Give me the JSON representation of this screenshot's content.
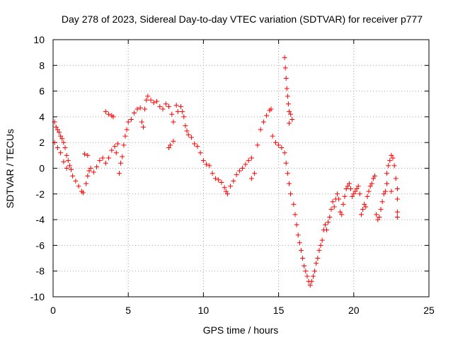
{
  "chart_data": {
    "type": "scatter",
    "title": "Day 278 of 2023, Sidereal Day-to-day VTEC variation (SDTVAR) for receiver p777",
    "xlabel": "GPS time / hours",
    "ylabel": "SDTVAR / TECUs",
    "xlim": [
      0,
      25
    ],
    "ylim": [
      -10,
      10
    ],
    "xticks": [
      0,
      5,
      10,
      15,
      20,
      25
    ],
    "yticks": [
      -10,
      -8,
      -6,
      -4,
      -2,
      0,
      2,
      4,
      6,
      8,
      10
    ],
    "grid": true,
    "marker": "+",
    "color": "#ff0000",
    "series": [
      {
        "name": "SDTVAR",
        "points": [
          [
            0.1,
            3.6
          ],
          [
            0.2,
            3.2
          ],
          [
            0.3,
            3.0
          ],
          [
            0.4,
            2.8
          ],
          [
            0.5,
            2.5
          ],
          [
            0.6,
            2.3
          ],
          [
            0.7,
            2.0
          ],
          [
            0.8,
            1.6
          ],
          [
            0.9,
            1.0
          ],
          [
            1.0,
            0.6
          ],
          [
            0.1,
            2.0
          ],
          [
            0.3,
            1.6
          ],
          [
            0.5,
            1.2
          ],
          [
            0.7,
            0.5
          ],
          [
            0.9,
            0.0
          ],
          [
            1.1,
            0.2
          ],
          [
            1.2,
            -0.1
          ],
          [
            1.3,
            -0.6
          ],
          [
            1.5,
            -1.0
          ],
          [
            1.7,
            -1.4
          ],
          [
            1.9,
            -1.8
          ],
          [
            2.0,
            -1.9
          ],
          [
            2.2,
            -1.2
          ],
          [
            2.3,
            -0.6
          ],
          [
            2.4,
            -0.2
          ],
          [
            2.1,
            1.1
          ],
          [
            2.3,
            1.0
          ],
          [
            2.5,
            0.0
          ],
          [
            2.7,
            -0.3
          ],
          [
            2.9,
            0.1
          ],
          [
            3.1,
            0.6
          ],
          [
            3.3,
            0.8
          ],
          [
            3.5,
            0.4
          ],
          [
            3.7,
            0.8
          ],
          [
            3.9,
            1.4
          ],
          [
            3.5,
            4.4
          ],
          [
            3.7,
            4.2
          ],
          [
            3.9,
            4.1
          ],
          [
            4.0,
            4.0
          ],
          [
            4.1,
            1.7
          ],
          [
            4.2,
            1.2
          ],
          [
            4.3,
            1.9
          ],
          [
            4.4,
            -0.4
          ],
          [
            4.5,
            0.4
          ],
          [
            4.6,
            0.9
          ],
          [
            4.7,
            1.8
          ],
          [
            4.8,
            2.5
          ],
          [
            4.9,
            3.0
          ],
          [
            5.0,
            3.6
          ],
          [
            5.2,
            3.8
          ],
          [
            5.4,
            4.3
          ],
          [
            5.6,
            4.6
          ],
          [
            5.8,
            4.7
          ],
          [
            5.9,
            3.6
          ],
          [
            6.0,
            3.2
          ],
          [
            6.1,
            4.6
          ],
          [
            6.2,
            5.3
          ],
          [
            6.3,
            5.6
          ],
          [
            6.5,
            5.3
          ],
          [
            6.7,
            5.1
          ],
          [
            6.9,
            5.2
          ],
          [
            7.1,
            4.8
          ],
          [
            7.3,
            4.6
          ],
          [
            7.5,
            5.0
          ],
          [
            7.7,
            4.8
          ],
          [
            7.9,
            4.2
          ],
          [
            8.0,
            3.6
          ],
          [
            8.2,
            4.9
          ],
          [
            8.3,
            4.4
          ],
          [
            7.7,
            1.6
          ],
          [
            7.8,
            1.8
          ],
          [
            8.0,
            2.1
          ],
          [
            8.5,
            4.8
          ],
          [
            8.6,
            4.4
          ],
          [
            8.7,
            4.0
          ],
          [
            8.8,
            3.3
          ],
          [
            8.9,
            2.9
          ],
          [
            9.0,
            2.6
          ],
          [
            9.2,
            2.4
          ],
          [
            9.4,
            1.9
          ],
          [
            9.6,
            1.7
          ],
          [
            9.8,
            1.2
          ],
          [
            10.0,
            0.6
          ],
          [
            10.2,
            0.3
          ],
          [
            10.4,
            0.2
          ],
          [
            10.6,
            -0.4
          ],
          [
            10.8,
            -0.8
          ],
          [
            11.0,
            -0.9
          ],
          [
            11.2,
            -1.1
          ],
          [
            11.4,
            -1.5
          ],
          [
            11.5,
            -1.8
          ],
          [
            11.6,
            -2.0
          ],
          [
            11.8,
            -1.4
          ],
          [
            12.0,
            -1.0
          ],
          [
            12.2,
            -0.5
          ],
          [
            12.4,
            -0.2
          ],
          [
            12.6,
            0.0
          ],
          [
            12.8,
            0.3
          ],
          [
            13.0,
            0.6
          ],
          [
            13.2,
            0.8
          ],
          [
            13.4,
            -0.4
          ],
          [
            13.2,
            -0.8
          ],
          [
            13.6,
            1.8
          ],
          [
            13.8,
            3.0
          ],
          [
            14.0,
            3.6
          ],
          [
            14.2,
            4.1
          ],
          [
            14.4,
            4.5
          ],
          [
            14.5,
            4.6
          ],
          [
            14.6,
            2.5
          ],
          [
            14.8,
            2.0
          ],
          [
            15.0,
            1.8
          ],
          [
            15.2,
            1.6
          ],
          [
            15.4,
            8.6
          ],
          [
            15.45,
            7.8
          ],
          [
            15.5,
            7.0
          ],
          [
            15.55,
            6.2
          ],
          [
            15.6,
            5.6
          ],
          [
            15.65,
            5.0
          ],
          [
            15.7,
            4.4
          ],
          [
            15.8,
            4.2
          ],
          [
            15.9,
            3.8
          ],
          [
            15.7,
            3.5
          ],
          [
            15.4,
            1.2
          ],
          [
            15.5,
            0.4
          ],
          [
            15.6,
            -0.4
          ],
          [
            15.7,
            -1.2
          ],
          [
            15.8,
            -2.0
          ],
          [
            16.0,
            -2.8
          ],
          [
            16.1,
            -3.6
          ],
          [
            16.2,
            -4.4
          ],
          [
            16.3,
            -5.2
          ],
          [
            16.4,
            -5.8
          ],
          [
            16.5,
            -6.4
          ],
          [
            16.6,
            -7.0
          ],
          [
            16.7,
            -7.6
          ],
          [
            16.8,
            -8.0
          ],
          [
            16.9,
            -8.4
          ],
          [
            17.0,
            -8.8
          ],
          [
            17.1,
            -9.1
          ],
          [
            17.2,
            -8.8
          ],
          [
            17.3,
            -8.4
          ],
          [
            17.4,
            -8.0
          ],
          [
            17.5,
            -7.4
          ],
          [
            17.6,
            -7.0
          ],
          [
            17.7,
            -6.4
          ],
          [
            17.8,
            -6.0
          ],
          [
            17.9,
            -5.6
          ],
          [
            18.0,
            -4.8
          ],
          [
            18.1,
            -4.4
          ],
          [
            18.2,
            -4.8
          ],
          [
            18.3,
            -4.2
          ],
          [
            18.4,
            -3.8
          ],
          [
            18.5,
            -3.2
          ],
          [
            18.6,
            -2.6
          ],
          [
            18.7,
            -3.0
          ],
          [
            18.8,
            -2.4
          ],
          [
            18.9,
            -2.0
          ],
          [
            19.0,
            -2.4
          ],
          [
            19.1,
            -3.4
          ],
          [
            19.2,
            -3.6
          ],
          [
            19.3,
            -2.8
          ],
          [
            19.4,
            -2.2
          ],
          [
            19.5,
            -1.6
          ],
          [
            19.6,
            -1.4
          ],
          [
            19.7,
            -1.2
          ],
          [
            19.8,
            -1.6
          ],
          [
            19.9,
            -2.2
          ],
          [
            20.0,
            -2.0
          ],
          [
            20.1,
            -1.8
          ],
          [
            20.2,
            -1.6
          ],
          [
            20.3,
            -1.4
          ],
          [
            20.4,
            -2.0
          ],
          [
            20.5,
            -3.6
          ],
          [
            20.6,
            -3.2
          ],
          [
            20.7,
            -2.8
          ],
          [
            20.8,
            -3.0
          ],
          [
            20.9,
            -2.2
          ],
          [
            21.0,
            -1.8
          ],
          [
            21.1,
            -1.4
          ],
          [
            21.2,
            -1.2
          ],
          [
            21.3,
            -0.8
          ],
          [
            21.4,
            -0.6
          ],
          [
            21.5,
            -3.6
          ],
          [
            21.6,
            -4.0
          ],
          [
            21.7,
            -3.8
          ],
          [
            21.8,
            -3.2
          ],
          [
            21.9,
            -2.6
          ],
          [
            22.0,
            -2.0
          ],
          [
            22.1,
            -1.8
          ],
          [
            22.2,
            -1.2
          ],
          [
            22.3,
            0.2
          ],
          [
            22.4,
            0.6
          ],
          [
            22.5,
            1.0
          ],
          [
            22.6,
            0.8
          ],
          [
            22.7,
            0.2
          ],
          [
            22.8,
            -0.8
          ],
          [
            22.9,
            -1.6
          ],
          [
            22.9,
            -2.4
          ],
          [
            22.9,
            -3.4
          ],
          [
            22.9,
            -3.8
          ],
          [
            22.5,
            -1.8
          ],
          [
            22.2,
            -0.4
          ]
        ]
      }
    ]
  }
}
